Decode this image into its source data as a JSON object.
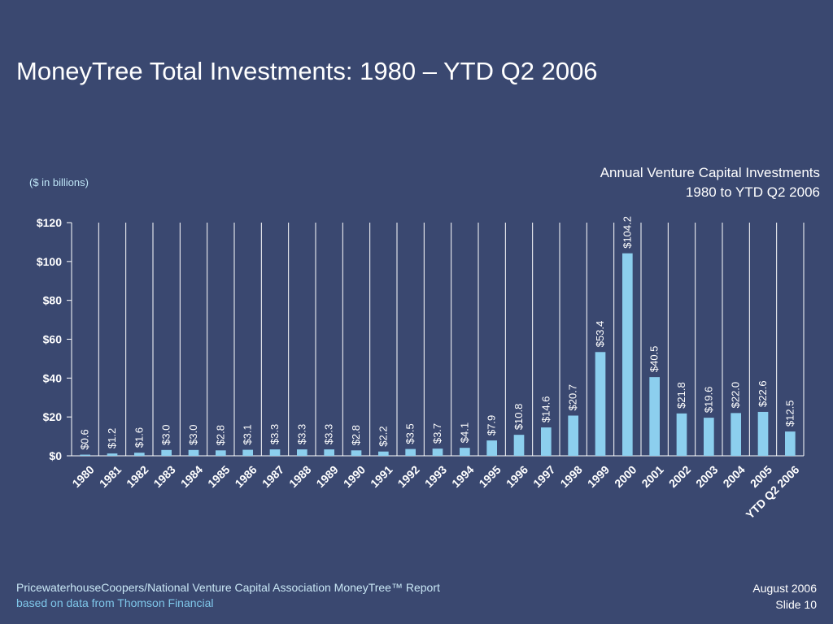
{
  "slide": {
    "title": "MoneyTree Total Investments: 1980 – YTD Q2 2006"
  },
  "footer": {
    "source_line1": "PricewaterhouseCoopers/National Venture Capital Association MoneyTree™ Report",
    "source_line2": "based on data from Thomson Financial",
    "date": "August 2006",
    "slide_number": "Slide 10"
  },
  "chart_data": {
    "type": "bar",
    "title": "Annual Venture Capital Investments",
    "subtitle": "1980 to YTD Q2 2006",
    "unit_label": "($ in billions)",
    "categories": [
      "1980",
      "1981",
      "1982",
      "1983",
      "1984",
      "1985",
      "1986",
      "1987",
      "1988",
      "1989",
      "1990",
      "1991",
      "1992",
      "1993",
      "1994",
      "1995",
      "1996",
      "1997",
      "1998",
      "1999",
      "2000",
      "2001",
      "2002",
      "2003",
      "2004",
      "2005",
      "YTD Q2 2006"
    ],
    "values": [
      0.6,
      1.2,
      1.6,
      3.0,
      3.0,
      2.8,
      3.1,
      3.3,
      3.3,
      3.3,
      2.8,
      2.2,
      3.5,
      3.7,
      4.1,
      7.9,
      10.8,
      14.6,
      20.7,
      53.4,
      104.2,
      40.5,
      21.8,
      19.6,
      22.0,
      22.6,
      12.5
    ],
    "data_labels": [
      "$0.6",
      "$1.2",
      "$1.6",
      "$3.0",
      "$3.0",
      "$2.8",
      "$3.1",
      "$3.3",
      "$3.3",
      "$3.3",
      "$2.8",
      "$2.2",
      "$3.5",
      "$3.7",
      "$4.1",
      "$7.9",
      "$10.8",
      "$14.6",
      "$20.7",
      "$53.4",
      "$104.2",
      "$40.5",
      "$21.8",
      "$19.6",
      "$22.0",
      "$22.6",
      "$12.5"
    ],
    "y_ticks": [
      0,
      20,
      40,
      60,
      80,
      100,
      120
    ],
    "y_tick_labels": [
      "$0",
      "$20",
      "$40",
      "$60",
      "$80",
      "$100",
      "$120"
    ],
    "ylim": [
      0,
      120
    ],
    "grid": "vertical category dividers",
    "legend": "none",
    "colors": {
      "bar": "#8ccfee",
      "axis": "#ffffff",
      "background": "#3a4870"
    }
  }
}
